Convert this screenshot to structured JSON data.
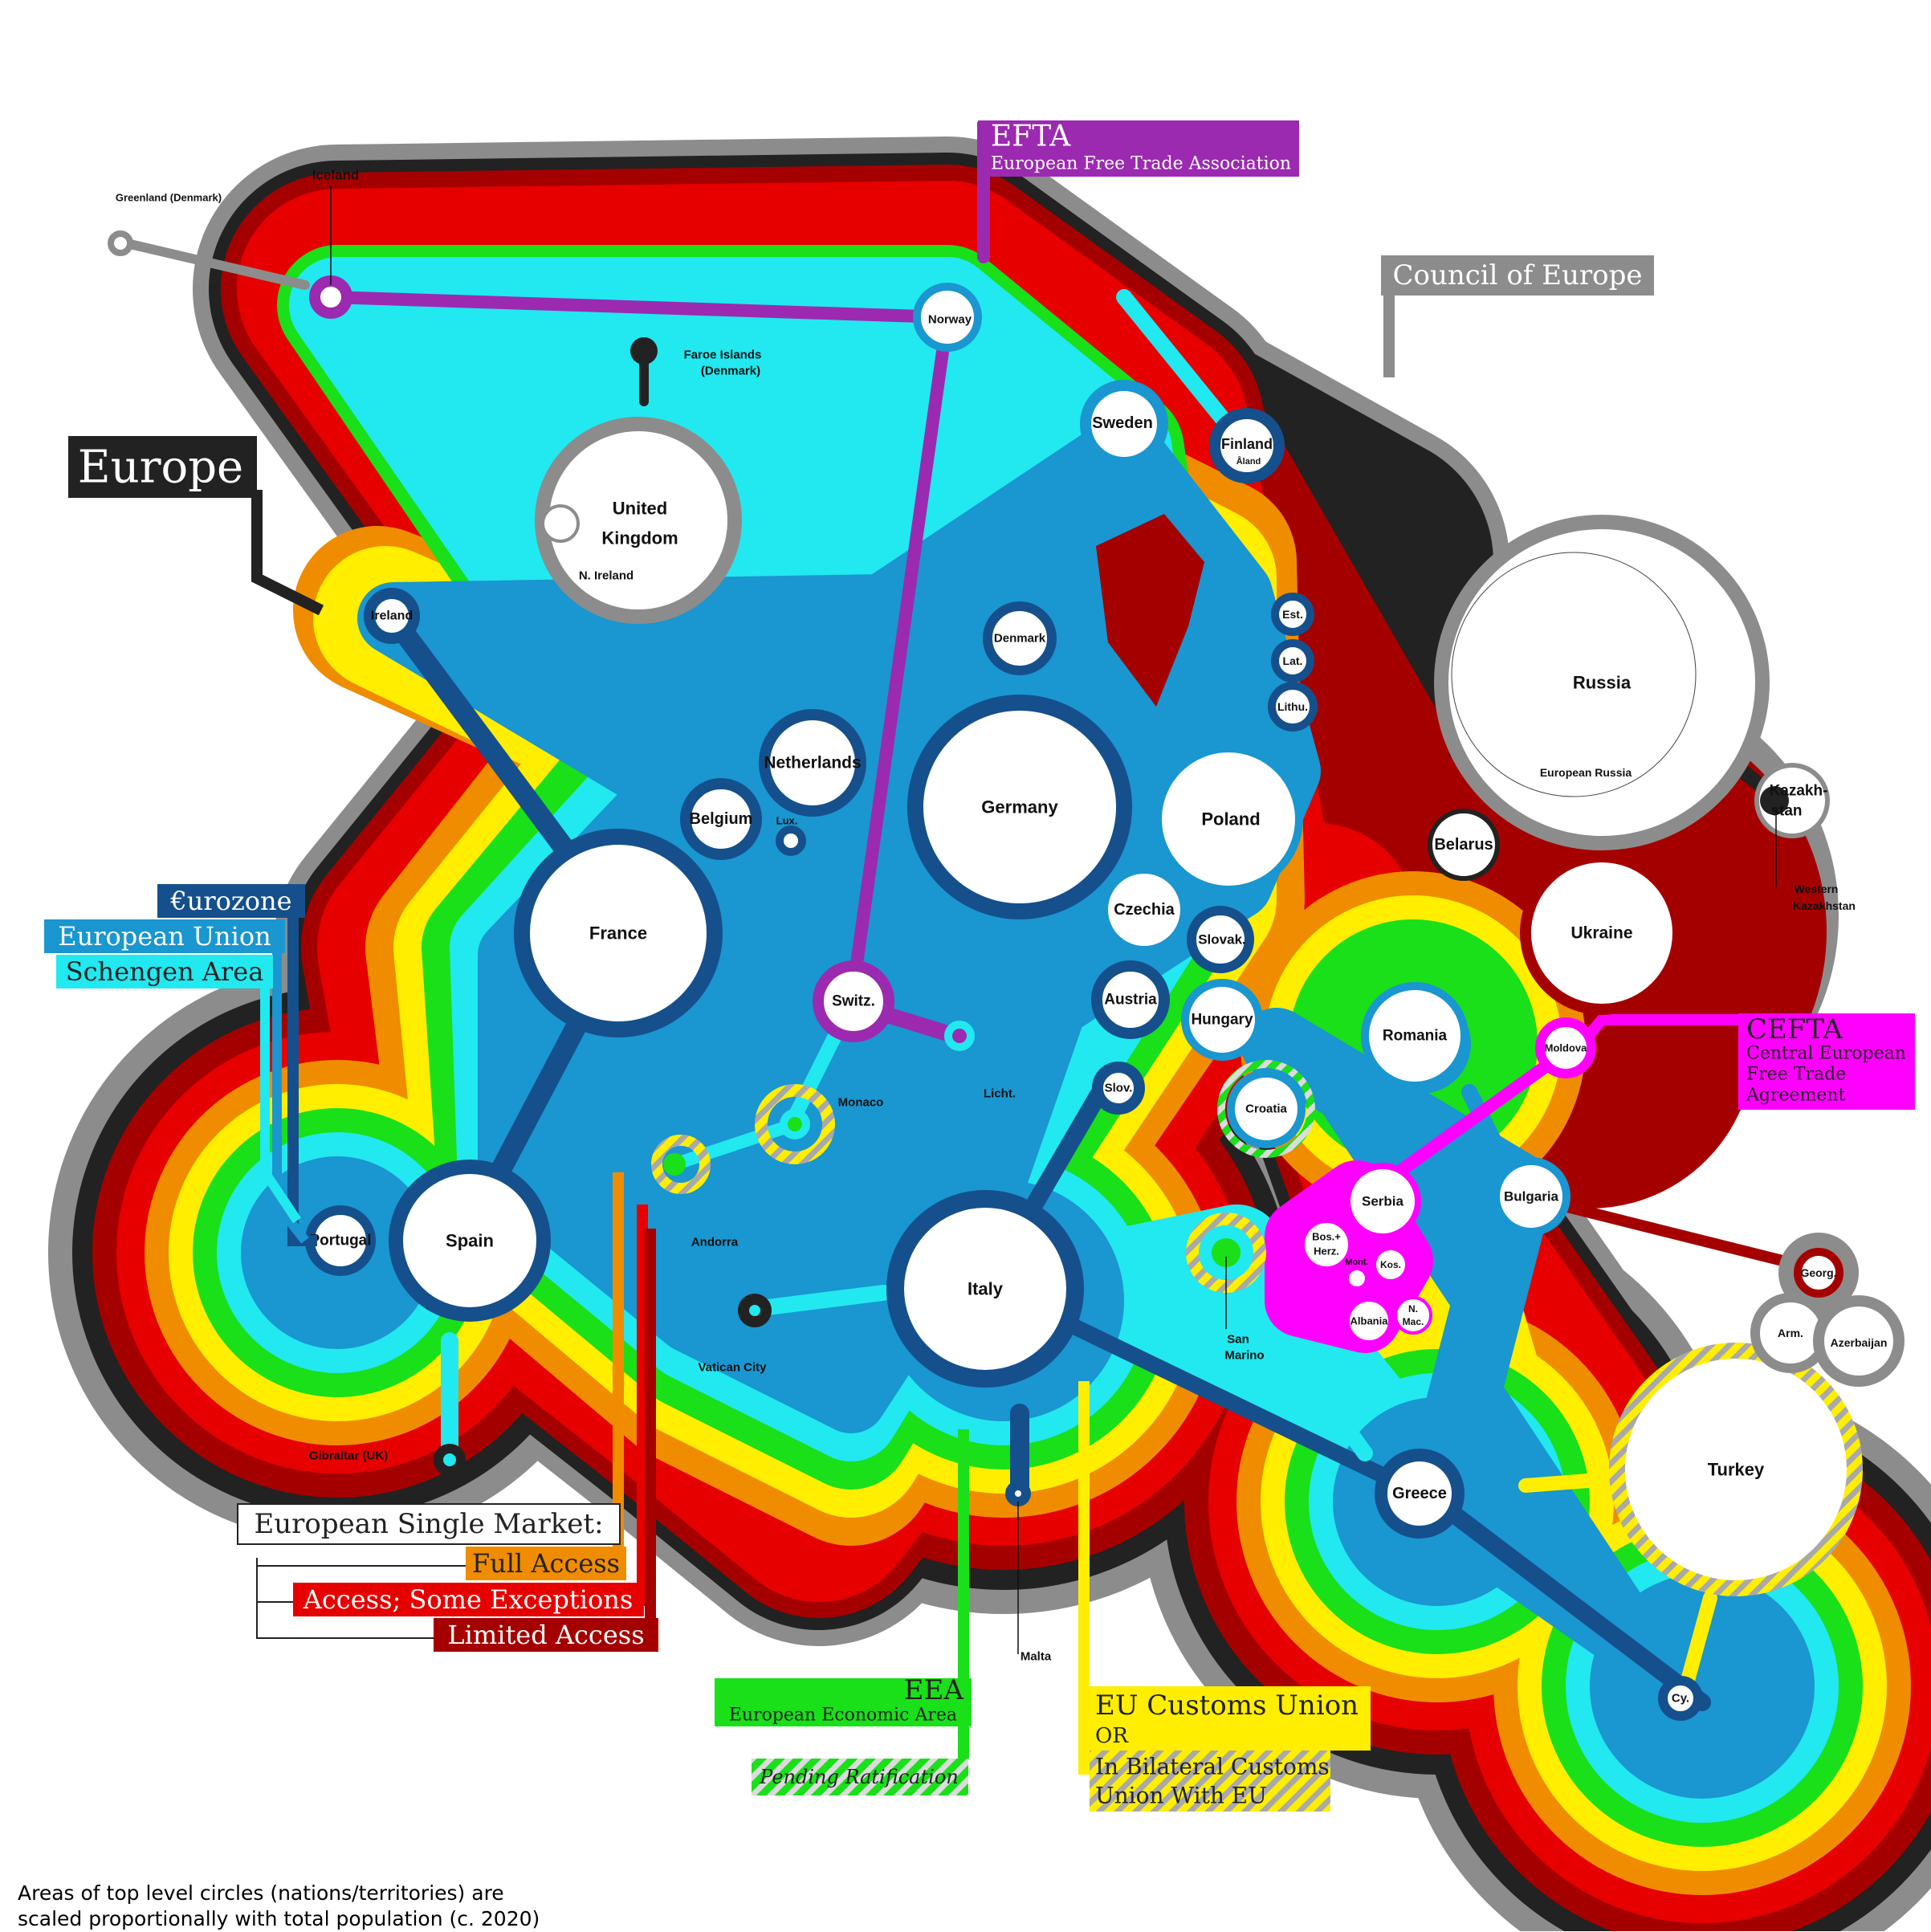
{
  "title": "Europe",
  "colors": {
    "council": "#8c8c8c",
    "europe_outer": "#222222",
    "limited": "#a50000",
    "some_exceptions": "#e60000",
    "full_access": "#f08c00",
    "customs": "#ffee00",
    "eea": "#19e019",
    "schengen": "#22e8f0",
    "eu": "#1a96d0",
    "eurozone": "#15508c",
    "efta": "#9b2ab0",
    "cefta": "#ff00ff"
  },
  "legend": {
    "efta_title": "EFTA",
    "efta_sub": "European Free Trade Association",
    "council": "Council of Europe",
    "eurozone": "€urozone",
    "eu": "European Union",
    "schengen": "Schengen Area",
    "cefta_title": "CEFTA",
    "cefta_line1": "Central European",
    "cefta_line2": "Free Trade",
    "cefta_line3": "Agreement",
    "single_market": "European Single Market:",
    "full_access": "Full Access",
    "some_exceptions": "Access; Some Exceptions",
    "limited_access": "Limited Access",
    "eea_title": "EEA",
    "eea_sub": "European Economic Area",
    "pending": "Pending Ratification",
    "customs_title": "EU Customs Union",
    "customs_or": "OR",
    "customs_line2": "In Bilateral Customs",
    "customs_line3": "Union With EU"
  },
  "countries": {
    "iceland": "Iceland",
    "greenland": "Greenland (Denmark)",
    "faroe_line1": "Faroe Islands",
    "faroe_line2": "(Denmark)",
    "uk_line1": "United",
    "uk_line2": "Kingdom",
    "n_ireland": "N. Ireland",
    "ireland": "Ireland",
    "norway": "Norway",
    "sweden": "Sweden",
    "finland": "Finland",
    "aland": "Åland",
    "estonia": "Est.",
    "latvia": "Lat.",
    "lithuania": "Lithu.",
    "denmark": "Denmark",
    "netherlands": "Netherlands",
    "belgium": "Belgium",
    "luxembourg": "Lux.",
    "germany": "Germany",
    "poland": "Poland",
    "france": "France",
    "czechia": "Czechia",
    "slovakia": "Slovak.",
    "austria": "Austria",
    "hungary": "Hungary",
    "switzerland": "Switz.",
    "liechtenstein": "Licht.",
    "monaco": "Monaco",
    "andorra": "Andorra",
    "slovenia": "Slov.",
    "croatia": "Croatia",
    "romania": "Romania",
    "moldova": "Moldova",
    "bulgaria": "Bulgaria",
    "serbia": "Serbia",
    "bosnia_line1": "Bos.+",
    "bosnia_line2": "Herz.",
    "montenegro": "Mont.",
    "kosovo": "Kos.",
    "albania": "Albania",
    "n_macedonia_line1": "N.",
    "n_macedonia_line2": "Mac.",
    "portugal": "Portugal",
    "spain": "Spain",
    "gibraltar": "Gibraltar (UK)",
    "italy": "Italy",
    "vatican": "Vatican City",
    "san_marino_line1": "San",
    "san_marino_line2": "Marino",
    "malta": "Malta",
    "greece": "Greece",
    "cyprus": "Cy.",
    "turkey": "Turkey",
    "georgia": "Georg.",
    "armenia": "Arm.",
    "azerbaijan": "Azerbaijan",
    "russia": "Russia",
    "european_russia": "European Russia",
    "kazakhstan_line1": "Kazakh-",
    "kazakhstan_line2": "stan",
    "western_kazakhstan_line1": "Western",
    "western_kazakhstan_line2": "Kazakhstan",
    "belarus": "Belarus",
    "ukraine": "Ukraine"
  },
  "footnote_line1": "Areas of top level circles (nations/territories) are",
  "footnote_line2": "scaled proportionally with total population (c. 2020)"
}
